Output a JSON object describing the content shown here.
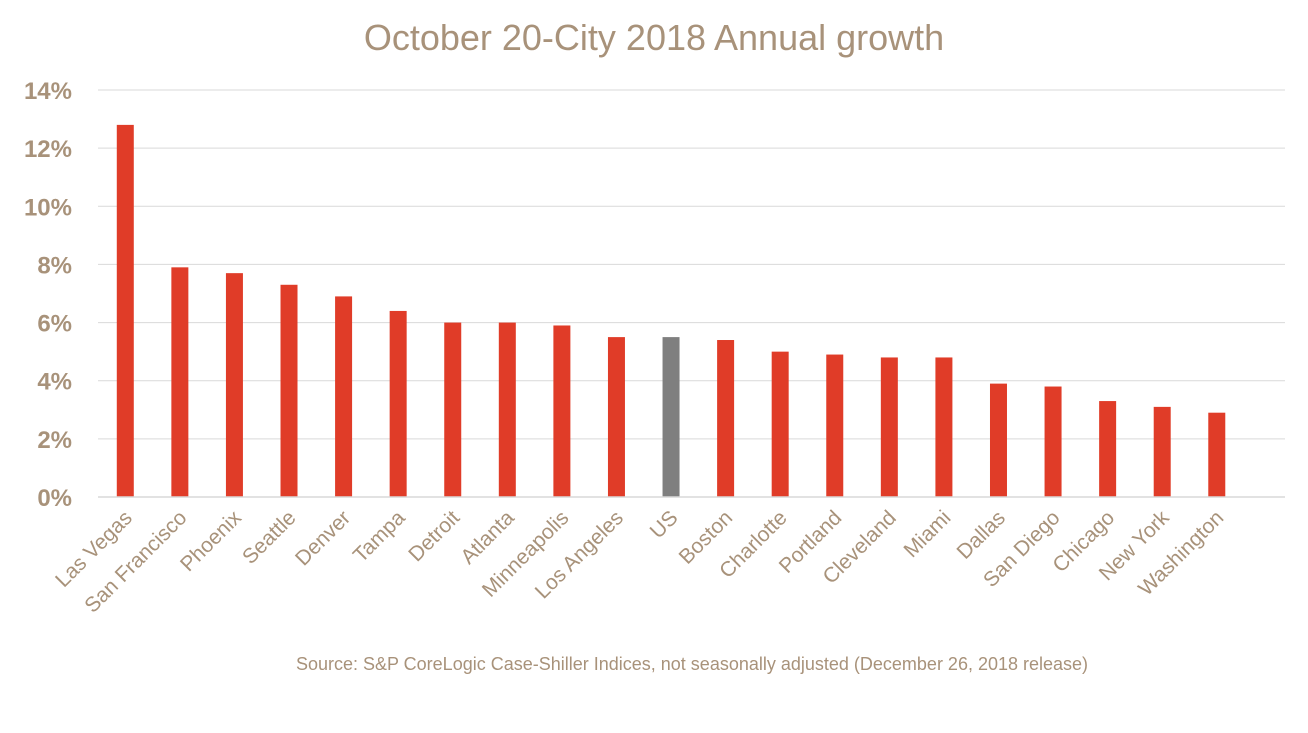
{
  "chart_data": {
    "type": "bar",
    "title": "October 20-City 2018 Annual growth",
    "source": "Source:  S&P CoreLogic Case-Shiller Indices, not seasonally adjusted (December 26, 2018 release)",
    "categories": [
      "Las Vegas",
      "San Francisco",
      "Phoenix",
      "Seattle",
      "Denver",
      "Tampa",
      "Detroit",
      "Atlanta",
      "Minneapolis",
      "Los Angeles",
      "US",
      "Boston",
      "Charlotte",
      "Portland",
      "Cleveland",
      "Miami",
      "Dallas",
      "San Diego",
      "Chicago",
      "New York",
      "Washington"
    ],
    "values": [
      12.8,
      7.9,
      7.7,
      7.3,
      6.9,
      6.4,
      6.0,
      6.0,
      5.9,
      5.5,
      5.5,
      5.4,
      5.0,
      4.9,
      4.8,
      4.8,
      3.9,
      3.8,
      3.3,
      3.1,
      2.9
    ],
    "highlight_category": "US",
    "ylim": [
      0,
      14
    ],
    "yticks": [
      0,
      2,
      4,
      6,
      8,
      10,
      12,
      14
    ],
    "ytick_labels": [
      "0%",
      "2%",
      "4%",
      "6%",
      "8%",
      "10%",
      "12%",
      "14%"
    ],
    "xlabel": "",
    "ylabel": "",
    "grid": true,
    "colors": {
      "bar": "#e03c28",
      "highlight": "#7f7f7f",
      "text": "#a8927a",
      "grid": "#d9d9d9"
    }
  }
}
